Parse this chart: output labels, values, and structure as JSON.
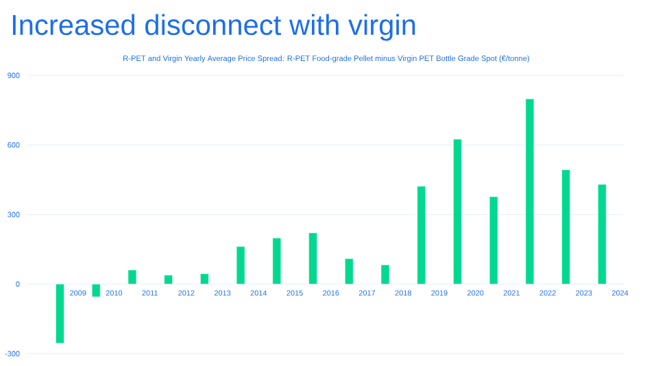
{
  "chart_data": {
    "type": "bar",
    "title": "Increased disconnect with virgin",
    "subtitle": "R-PET and Virgin Yearly Average Price Spread: R-PET Food-grade Pellet minus Virgin PET Bottle Grade Spot (€/tonne)",
    "categories": [
      "2009",
      "2010",
      "2011",
      "2012",
      "2013",
      "2014",
      "2015",
      "2016",
      "2017",
      "2018",
      "2019",
      "2020",
      "2021",
      "2022",
      "2023",
      "2024"
    ],
    "values": [
      -255,
      -55,
      61,
      39,
      45,
      162,
      199,
      221,
      110,
      83,
      422,
      625,
      377,
      799,
      493,
      430
    ],
    "color": "#00d98f",
    "ylim": [
      -300,
      900
    ],
    "yticks": [
      -300,
      0,
      300,
      600,
      900
    ],
    "grid": "y"
  }
}
